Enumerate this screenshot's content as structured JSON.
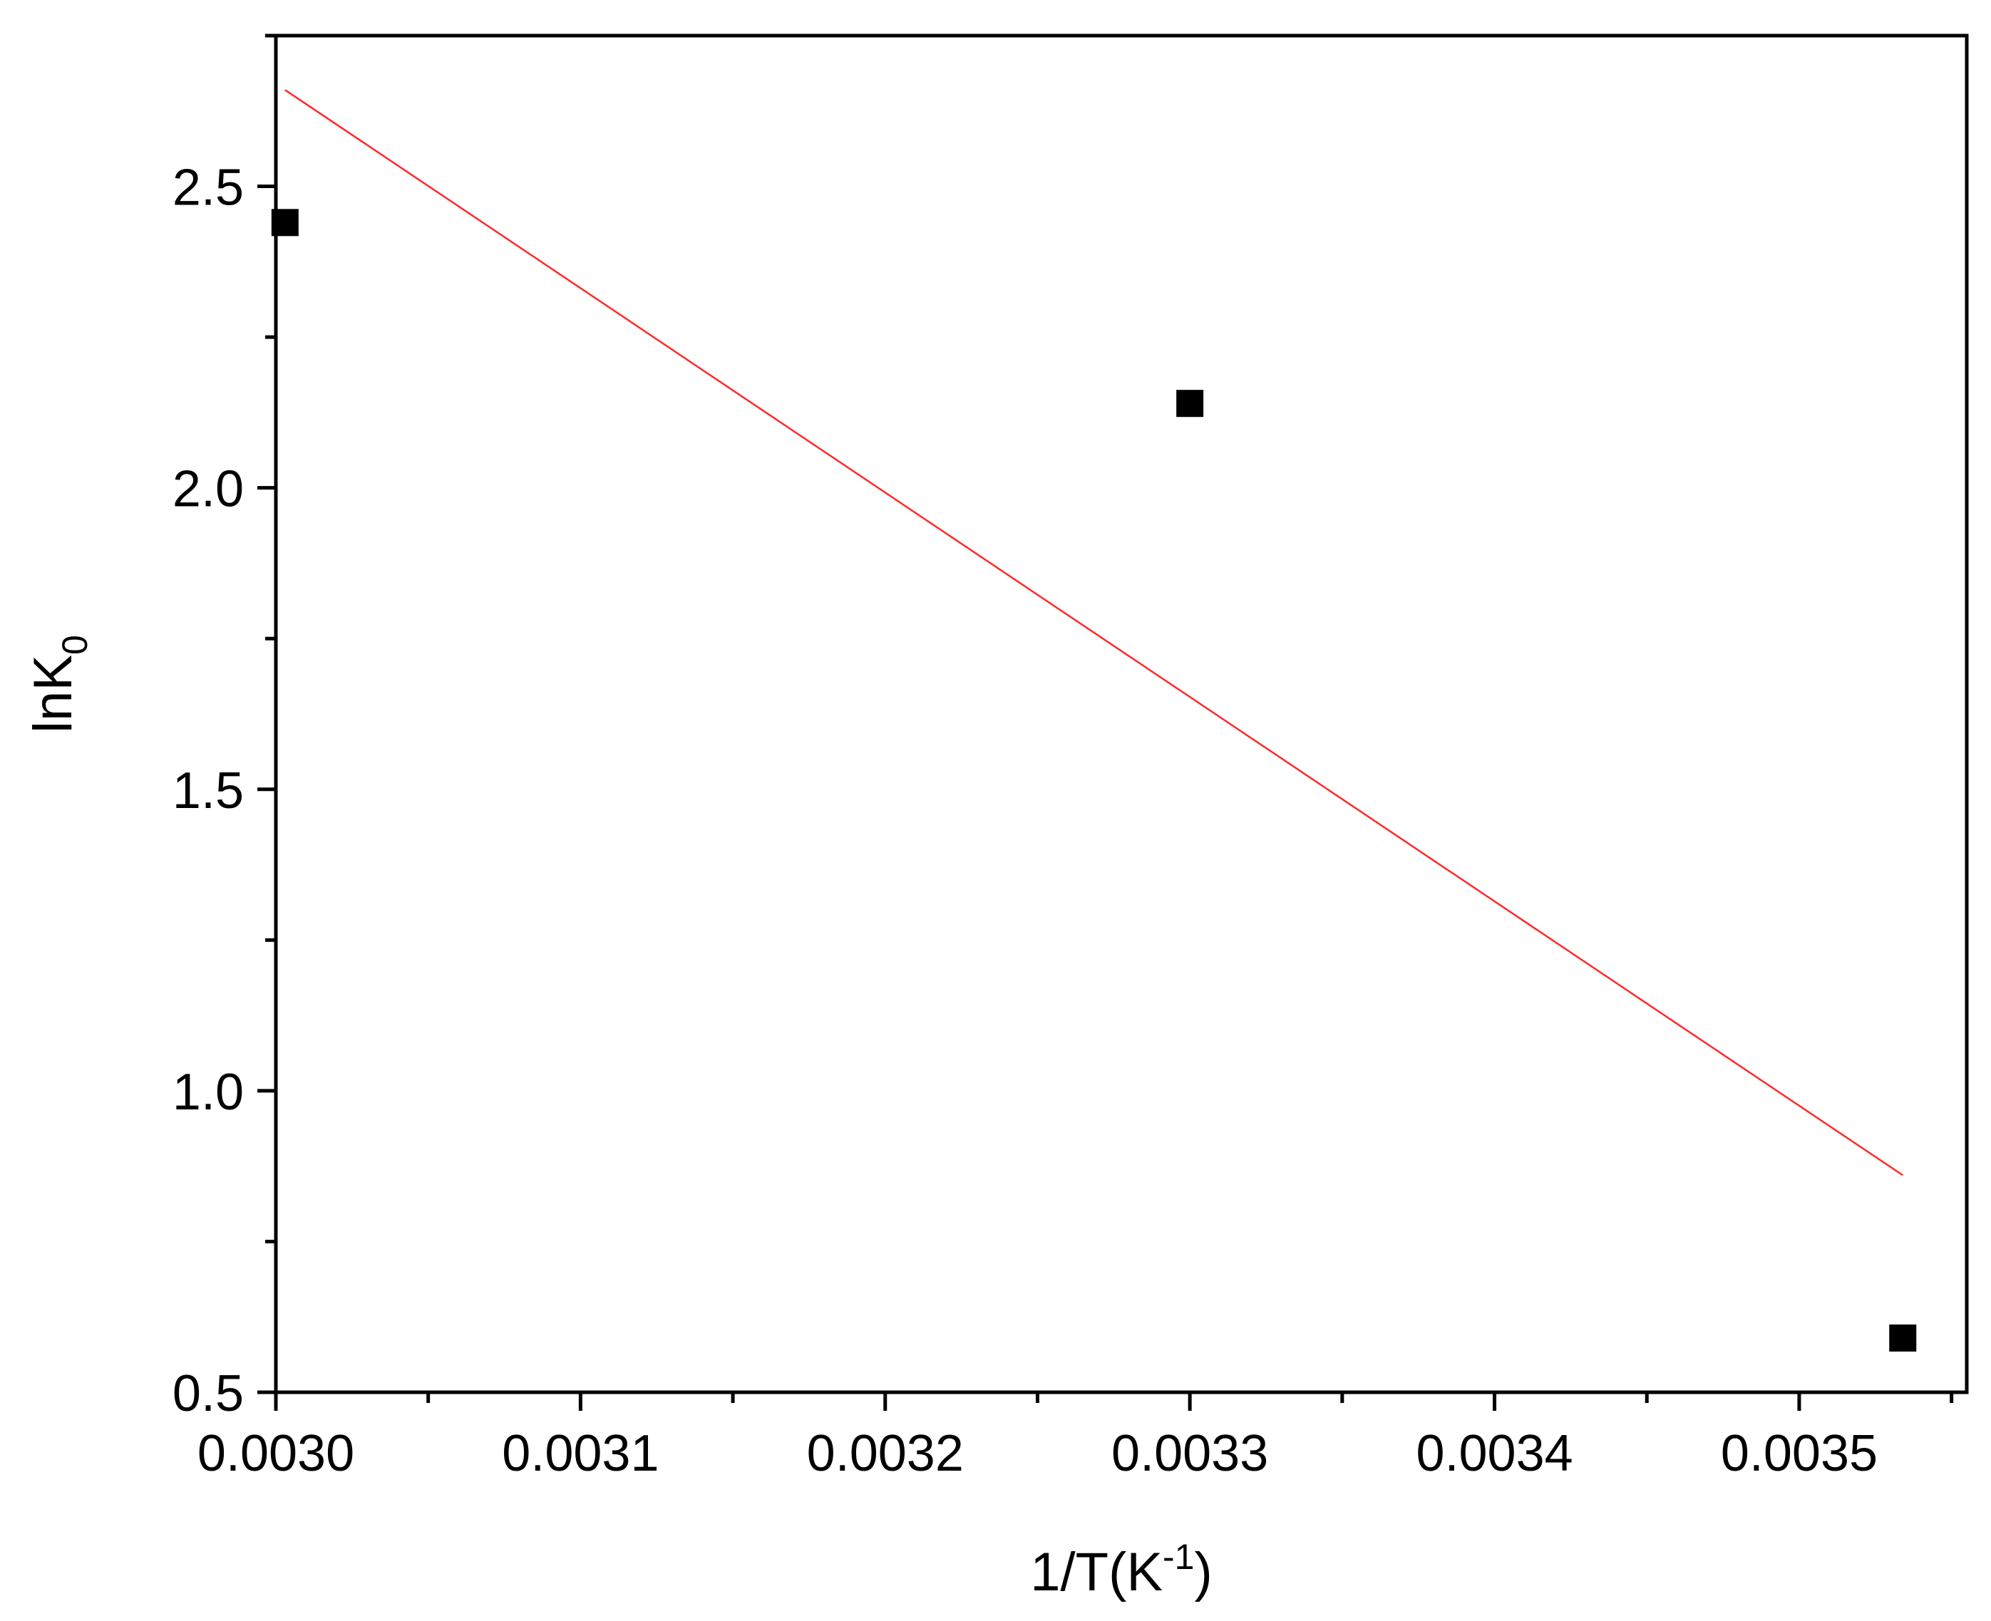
{
  "chart_data": {
    "type": "scatter",
    "xlabel": "1/T(K",
    "xlabel_sup": "-1",
    "xlabel_suffix": ")",
    "ylabel": "lnK",
    "ylabel_sub": "0",
    "xlim": [
      0.003,
      0.003555
    ],
    "ylim": [
      0.5,
      2.75
    ],
    "grid": false,
    "legend": "none",
    "x_ticks": [
      {
        "value": 0.003,
        "label": "0.0030"
      },
      {
        "value": 0.0031,
        "label": "0.0031"
      },
      {
        "value": 0.0032,
        "label": "0.0032"
      },
      {
        "value": 0.0033,
        "label": "0.0033"
      },
      {
        "value": 0.0034,
        "label": "0.0034"
      },
      {
        "value": 0.0035,
        "label": "0.0035"
      }
    ],
    "x_minor_ticks": [
      0.00305,
      0.00315,
      0.00325,
      0.00335,
      0.00345,
      0.00355
    ],
    "y_ticks": [
      {
        "value": 0.5,
        "label": "0.5"
      },
      {
        "value": 1.0,
        "label": "1.0"
      },
      {
        "value": 1.5,
        "label": "1.5"
      },
      {
        "value": 2.0,
        "label": "2.0"
      },
      {
        "value": 2.5,
        "label": "2.5"
      }
    ],
    "y_minor_ticks": [
      0.75,
      1.25,
      1.75,
      2.25,
      2.75
    ],
    "series": [
      {
        "kind": "scatter",
        "marker": "square",
        "color": "#000000",
        "points": [
          {
            "x": 0.003003,
            "y": 2.44
          },
          {
            "x": 0.0033,
            "y": 2.14
          },
          {
            "x": 0.003534,
            "y": 0.59
          }
        ]
      },
      {
        "kind": "line",
        "color": "#ff2a2a",
        "points": [
          {
            "x": 0.003003,
            "y": 2.66
          },
          {
            "x": 0.003534,
            "y": 0.86
          }
        ]
      }
    ]
  }
}
